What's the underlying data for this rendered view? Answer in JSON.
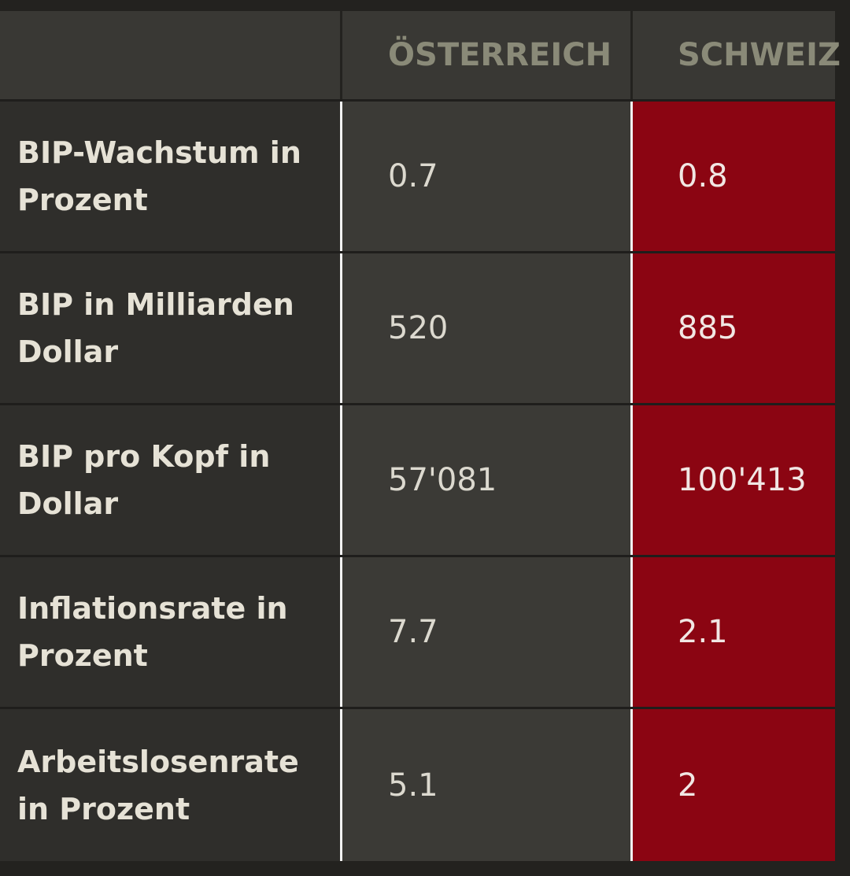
{
  "chart_data": {
    "type": "table",
    "columns": [
      "",
      "ÖSTERREICH",
      "SCHWEIZ"
    ],
    "rows": [
      {
        "label": "BIP-Wachstum in Prozent",
        "oesterreich": "0.7",
        "schweiz": "0.8"
      },
      {
        "label": "BIP in Milliarden Dollar",
        "oesterreich": "520",
        "schweiz": "885"
      },
      {
        "label": "BIP pro Kopf in Dollar",
        "oesterreich": "57'081",
        "schweiz": "100'413"
      },
      {
        "label": "Inflationsrate in Prozent",
        "oesterreich": "7.7",
        "schweiz": "2.1"
      },
      {
        "label": "Arbeitslosenrate in Prozent",
        "oesterreich": "5.1",
        "schweiz": "2"
      }
    ],
    "colors": {
      "schweiz_column": "#8b0512",
      "oesterreich_column": "#3b3a36",
      "label_column": "#2f2e2b"
    }
  }
}
